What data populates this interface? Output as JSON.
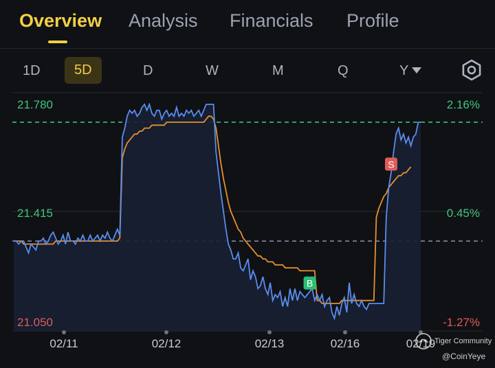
{
  "tabs": [
    {
      "label": "Overview",
      "active": true
    },
    {
      "label": "Analysis",
      "active": false
    },
    {
      "label": "Financials",
      "active": false
    },
    {
      "label": "Profile",
      "active": false
    }
  ],
  "periods": [
    {
      "label": "1D",
      "active": false
    },
    {
      "label": "5D",
      "active": true
    },
    {
      "label": "D",
      "active": false
    },
    {
      "label": "W",
      "active": false
    },
    {
      "label": "M",
      "active": false
    },
    {
      "label": "Q",
      "active": false
    },
    {
      "label": "Y",
      "active": false
    }
  ],
  "settings_icon": "gear-icon",
  "watermark": {
    "community": "Tiger Community",
    "handle": "@CoinYeye"
  },
  "chart_data": {
    "type": "line",
    "y_labels_left": [
      "21.780",
      "21.415",
      "21.050"
    ],
    "y_labels_right": [
      "2.16%",
      "0.45%",
      "-1.27%"
    ],
    "ylim": [
      21.05,
      21.78
    ],
    "x_tick_labels": [
      "02/11",
      "02/12",
      "02/13",
      "02/16",
      "02/19"
    ],
    "reference_lines": [
      {
        "name": "current",
        "value": 21.72,
        "color": "#3fd08a"
      },
      {
        "name": "previous close",
        "value": 21.32,
        "color": "#8d95b0"
      }
    ],
    "markers": [
      {
        "label": "B",
        "index": 120,
        "value": 21.15,
        "color": "#2bbd75"
      },
      {
        "label": "S",
        "index": 153,
        "value": 21.55,
        "color": "#e05b57"
      }
    ],
    "series": [
      {
        "color": "#5b8def",
        "values": [
          21.32,
          21.32,
          21.31,
          21.32,
          21.32,
          21.3,
          21.28,
          21.31,
          21.3,
          21.29,
          21.32,
          21.32,
          21.33,
          21.31,
          21.32,
          21.34,
          21.35,
          21.33,
          21.31,
          21.32,
          21.34,
          21.31,
          21.35,
          21.32,
          21.32,
          21.31,
          21.33,
          21.32,
          21.34,
          21.32,
          21.32,
          21.34,
          21.32,
          21.33,
          21.34,
          21.32,
          21.34,
          21.33,
          21.35,
          21.33,
          21.32,
          21.34,
          21.36,
          21.34,
          21.67,
          21.7,
          21.74,
          21.76,
          21.75,
          21.76,
          21.74,
          21.75,
          21.77,
          21.78,
          21.76,
          21.78,
          21.75,
          21.74,
          21.76,
          21.76,
          21.73,
          21.75,
          21.76,
          21.74,
          21.75,
          21.74,
          21.77,
          21.74,
          21.75,
          21.74,
          21.76,
          21.75,
          21.76,
          21.74,
          21.75,
          21.76,
          21.74,
          21.76,
          21.78,
          21.78,
          21.78,
          21.78,
          21.62,
          21.55,
          21.48,
          21.42,
          21.36,
          21.31,
          21.29,
          21.26,
          21.26,
          21.28,
          21.23,
          21.22,
          21.24,
          21.26,
          21.19,
          21.22,
          21.2,
          21.16,
          21.17,
          21.2,
          21.16,
          21.14,
          21.18,
          21.12,
          21.14,
          21.13,
          21.15,
          21.1,
          21.13,
          21.1,
          21.16,
          21.12,
          21.16,
          21.12,
          21.15,
          21.14,
          21.13,
          21.14,
          21.15,
          21.16,
          21.12,
          21.14,
          21.12,
          21.14,
          21.1,
          21.12,
          21.13,
          21.08,
          21.06,
          21.1,
          21.07,
          21.11,
          21.13,
          21.08,
          21.18,
          21.11,
          21.14,
          21.11,
          21.1,
          21.12,
          21.1,
          21.09,
          21.11,
          21.11,
          21.11,
          21.11,
          21.11,
          21.11,
          21.11,
          21.4,
          21.5,
          21.55,
          21.62,
          21.68,
          21.7,
          21.66,
          21.68,
          21.65,
          21.67,
          21.64,
          21.67,
          21.68,
          21.72,
          21.72
        ]
      },
      {
        "color": "#e8912c",
        "values": [
          21.32,
          21.32,
          21.32,
          21.32,
          21.31,
          21.31,
          21.31,
          21.31,
          21.31,
          21.31,
          21.31,
          21.31,
          21.31,
          21.31,
          21.31,
          21.31,
          21.31,
          21.32,
          21.32,
          21.32,
          21.32,
          21.32,
          21.32,
          21.32,
          21.32,
          21.32,
          21.32,
          21.32,
          21.32,
          21.32,
          21.32,
          21.32,
          21.32,
          21.32,
          21.32,
          21.32,
          21.32,
          21.32,
          21.32,
          21.32,
          21.32,
          21.32,
          21.32,
          21.33,
          21.6,
          21.63,
          21.65,
          21.66,
          21.67,
          21.68,
          21.68,
          21.69,
          21.69,
          21.7,
          21.7,
          21.7,
          21.71,
          21.71,
          21.71,
          21.71,
          21.71,
          21.71,
          21.72,
          21.72,
          21.72,
          21.72,
          21.72,
          21.72,
          21.72,
          21.72,
          21.72,
          21.72,
          21.72,
          21.72,
          21.72,
          21.72,
          21.72,
          21.72,
          21.73,
          21.74,
          21.74,
          21.73,
          21.7,
          21.64,
          21.58,
          21.53,
          21.49,
          21.45,
          21.42,
          21.4,
          21.38,
          21.36,
          21.35,
          21.33,
          21.32,
          21.31,
          21.3,
          21.29,
          21.28,
          21.27,
          21.27,
          21.26,
          21.26,
          21.25,
          21.25,
          21.25,
          21.24,
          21.24,
          21.24,
          21.24,
          21.23,
          21.23,
          21.23,
          21.23,
          21.23,
          21.23,
          21.22,
          21.22,
          21.22,
          21.22,
          21.22,
          21.22,
          21.22,
          21.12,
          21.12,
          21.11,
          21.11,
          21.11,
          21.11,
          21.11,
          21.11,
          21.11,
          21.11,
          21.12,
          21.12,
          21.12,
          21.12,
          21.12,
          21.12,
          21.12,
          21.12,
          21.12,
          21.12,
          21.12,
          21.12,
          21.12,
          21.12,
          21.4,
          21.43,
          21.45,
          21.47,
          21.48,
          21.5,
          21.51,
          21.52,
          21.53,
          21.54,
          21.54,
          21.55,
          21.55,
          21.56,
          21.57
        ]
      }
    ]
  }
}
